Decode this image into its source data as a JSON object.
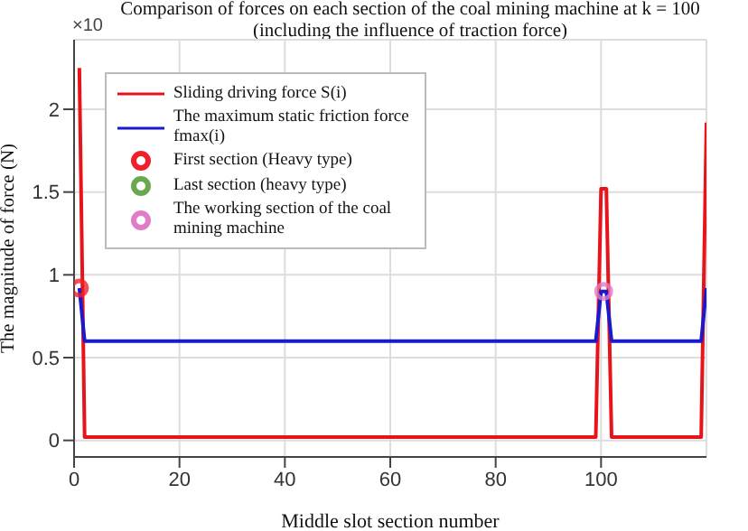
{
  "chart_data": {
    "type": "line",
    "title": "Comparison of forces on each section of the coal mining machine at k = 100\n(including the influence of traction force)",
    "xlabel": "Middle slot section number",
    "ylabel": "The magnitude of force (N)",
    "annotations": [
      "×10"
    ],
    "xlim": [
      0,
      120
    ],
    "xticks": [
      0,
      20,
      40,
      60,
      80,
      100
    ],
    "ylim": [
      -0.1,
      2.42
    ],
    "yticks": [
      0,
      0.5,
      1,
      1.5,
      2
    ],
    "grid": true,
    "legend": "top left",
    "line_style": "solid",
    "series": [
      {
        "name": "Sliding driving force S(i)",
        "color": "#e8141c",
        "marker": "none",
        "x": [
          1,
          2,
          99,
          100,
          101,
          102,
          119,
          120
        ],
        "values": [
          2.25,
          0.02,
          0.02,
          1.52,
          1.52,
          0.02,
          0.02,
          1.92
        ]
      },
      {
        "name": "The maximum static friction force fmax(i)",
        "color": "#1a1acc",
        "marker": "none",
        "x": [
          1,
          2,
          99,
          100,
          101,
          102,
          119,
          120
        ],
        "values": [
          0.92,
          0.6,
          0.6,
          0.9,
          0.9,
          0.6,
          0.6,
          0.92
        ]
      },
      {
        "name": "First section (Heavy type)",
        "color": "#f0202a",
        "type": "scatter",
        "marker": "circle",
        "x": [
          1
        ],
        "values": [
          0.92
        ]
      },
      {
        "name": "Last section (heavy type)",
        "color": "#6aa84f",
        "type": "scatter",
        "marker": "circle"
      },
      {
        "name": "The working section of the coal mining machine",
        "color": "#e07cc8",
        "type": "scatter",
        "marker": "circle",
        "x": [
          100.5
        ],
        "values": [
          0.9
        ]
      }
    ]
  }
}
